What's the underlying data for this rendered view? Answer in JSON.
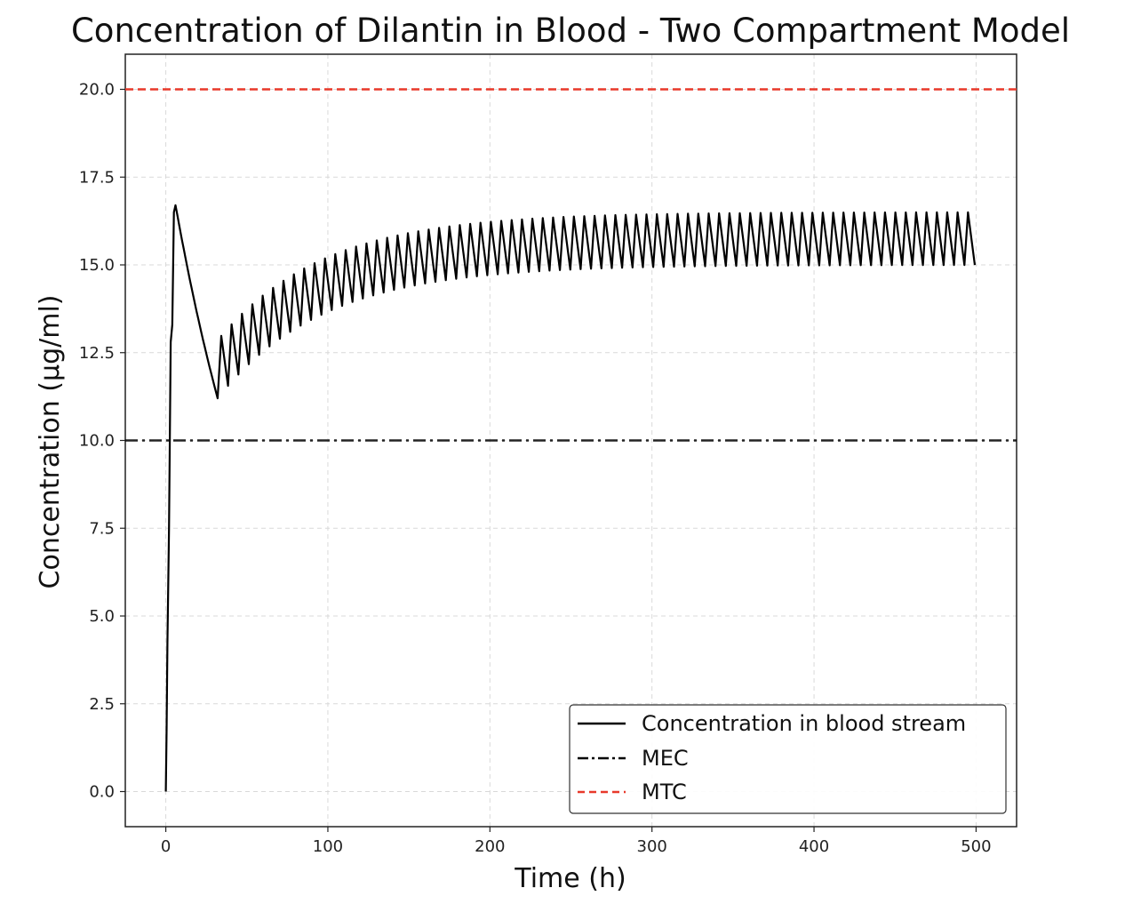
{
  "chart_data": {
    "type": "line",
    "title": "Concentration of Dilantin in Blood - Two Compartment Model",
    "xlabel": "Time (h)",
    "ylabel": "Concentration (μg/ml)",
    "xlim": [
      -25,
      525
    ],
    "ylim": [
      -1,
      21
    ],
    "xticks": [
      0,
      100,
      200,
      300,
      400,
      500
    ],
    "xtick_labels": [
      "0",
      "100",
      "200",
      "300",
      "400",
      "500"
    ],
    "yticks": [
      0,
      2.5,
      5,
      7.5,
      10,
      12.5,
      15,
      17.5,
      20
    ],
    "ytick_labels": [
      "0.0",
      "2.5",
      "5.0",
      "7.5",
      "10.0",
      "12.5",
      "15.0",
      "17.5",
      "20.0"
    ],
    "grid": true,
    "legend_position": "lower right",
    "dosing": {
      "loading_phase_hours": [
        0,
        1,
        2,
        3,
        4
      ],
      "loading_peak": 16.7,
      "loading_peak_time": 6,
      "first_trough": 11.2,
      "first_trough_time": 32,
      "maintenance_interval_hours": 6.4,
      "steady_state_peak": 16.5,
      "steady_state_trough": 15.0,
      "end_time": 500,
      "end_value": 16.1
    },
    "series": [
      {
        "name": "Concentration in blood stream",
        "color": "#000000",
        "style": "solid",
        "summary": {
          "initial": 0.0,
          "max": 16.7,
          "min_after_loading": 11.2,
          "steady_state_range": [
            15.0,
            16.5
          ]
        }
      },
      {
        "name": "MEC",
        "color": "#000000",
        "style": "dashdot",
        "y": 10.0
      },
      {
        "name": "MTC",
        "color": "#e8392a",
        "style": "dashed",
        "y": 20.0
      }
    ]
  }
}
